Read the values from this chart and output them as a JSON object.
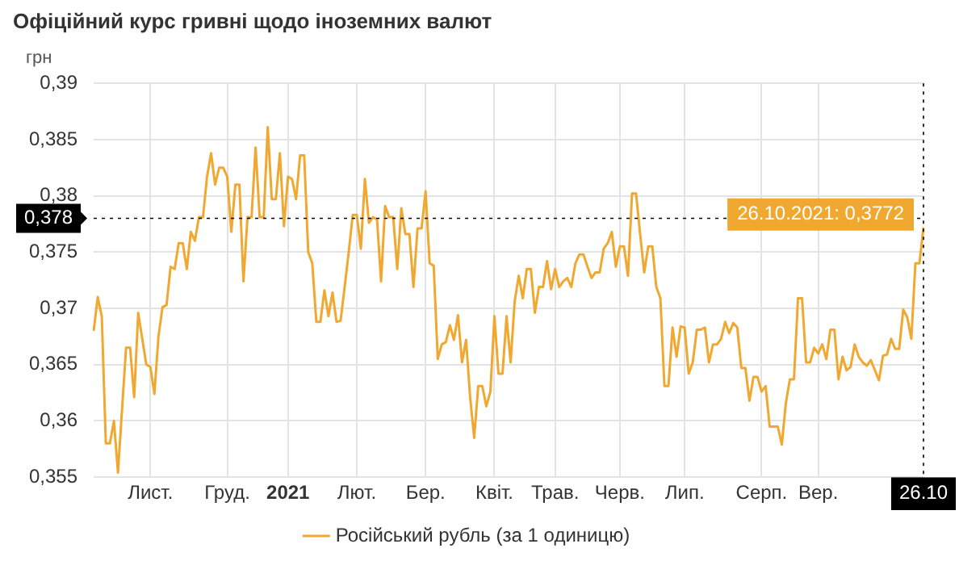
{
  "chart_data": {
    "type": "line",
    "title": "Офіційний курс гривні щодо іноземних валют",
    "ylabel": "грн",
    "categories": [
      null,
      null,
      null,
      null,
      null,
      null,
      null,
      null,
      null,
      null,
      null,
      null,
      null,
      null,
      "Лист.",
      null,
      null,
      null,
      null,
      null,
      null,
      null,
      null,
      null,
      null,
      null,
      null,
      null,
      null,
      null,
      null,
      null,
      null,
      "Груд.",
      null,
      null,
      null,
      null,
      null,
      null,
      null,
      null,
      null,
      null,
      null,
      null,
      null,
      null,
      "2021",
      null,
      null,
      null,
      null,
      null,
      null,
      null,
      null,
      null,
      null,
      null,
      null,
      null,
      null,
      null,
      null,
      "Лют.",
      null,
      null,
      null,
      null,
      null,
      null,
      null,
      null,
      null,
      null,
      null,
      null,
      null,
      null,
      null,
      null,
      "Бер.",
      null,
      null,
      null,
      null,
      null,
      null,
      null,
      null,
      null,
      null,
      null,
      null,
      null,
      null,
      null,
      null,
      "Квіт.",
      null,
      null,
      null,
      null,
      null,
      null,
      null,
      null,
      null,
      null,
      null,
      null,
      null,
      null,
      "Трав.",
      null,
      null,
      null,
      null,
      null,
      null,
      null,
      null,
      null,
      null,
      null,
      null,
      null,
      null,
      null,
      "Черв.",
      null,
      null,
      null,
      null,
      null,
      null,
      null,
      null,
      null,
      null,
      null,
      null,
      null,
      null,
      null,
      "Лип.",
      null,
      null,
      null,
      null,
      null,
      null,
      null,
      null,
      null,
      null,
      null,
      null,
      null,
      null,
      null,
      null,
      null,
      null,
      "Серп.",
      null,
      null,
      null,
      null,
      null,
      null,
      null,
      null,
      null,
      null,
      null,
      null,
      null,
      "Вер.",
      null,
      null,
      null,
      null,
      null,
      null,
      null,
      null,
      null,
      null,
      null,
      null,
      null,
      null,
      null,
      null,
      null,
      null,
      null,
      null,
      null,
      null,
      null,
      null,
      null,
      "26.10"
    ],
    "ylim": [
      0.355,
      0.39
    ],
    "yticks": [
      {
        "value": 0.355,
        "label": "0,355"
      },
      {
        "value": 0.36,
        "label": "0,36"
      },
      {
        "value": 0.365,
        "label": "0,365"
      },
      {
        "value": 0.37,
        "label": "0,37"
      },
      {
        "value": 0.375,
        "label": "0,375"
      },
      {
        "value": 0.38,
        "label": "0,38"
      },
      {
        "value": 0.385,
        "label": "0,385"
      },
      {
        "value": 0.39,
        "label": "0,39"
      }
    ],
    "grid": true,
    "legend": "bottom",
    "marker": "none",
    "line_style": "solid",
    "ref_lines": [
      {
        "axis": "y",
        "value": 0.378,
        "label": "0,378",
        "line_style": "dotted",
        "color": "#000000"
      },
      {
        "axis": "x",
        "value": "26.10",
        "line_style": "dotted",
        "color": "#000000"
      }
    ],
    "annotations": [
      {
        "text": "26.10.2021: 0,3772",
        "x": "26.10",
        "y": 0.3772
      }
    ],
    "series": [
      {
        "name": "Російський рубль (за 1 одиницю)",
        "color": "#f0a830",
        "values": [
          0.368,
          0.371,
          0.3693,
          0.358,
          0.358,
          0.36,
          0.3554,
          0.361,
          0.3665,
          0.3665,
          0.3621,
          0.3696,
          0.3673,
          0.365,
          0.3648,
          0.3624,
          0.3675,
          0.3701,
          0.3703,
          0.3737,
          0.3735,
          0.3758,
          0.3758,
          0.3735,
          0.3768,
          0.376,
          0.3781,
          0.3781,
          0.3817,
          0.3838,
          0.381,
          0.3825,
          0.3825,
          0.3817,
          0.3768,
          0.381,
          0.381,
          0.3724,
          0.3781,
          0.3781,
          0.3843,
          0.3781,
          0.3781,
          0.3861,
          0.3797,
          0.3797,
          0.3838,
          0.3773,
          0.3817,
          0.3815,
          0.3797,
          0.3836,
          0.3836,
          0.375,
          0.374,
          0.3688,
          0.3688,
          0.3716,
          0.3693,
          0.3714,
          0.3688,
          0.3689,
          0.3719,
          0.375,
          0.3783,
          0.3783,
          0.3753,
          0.3815,
          0.3776,
          0.3781,
          0.3779,
          0.3724,
          0.3791,
          0.3781,
          0.3781,
          0.3735,
          0.3789,
          0.3766,
          0.3766,
          0.3719,
          0.3771,
          0.3771,
          0.3804,
          0.374,
          0.3738,
          0.3655,
          0.3668,
          0.367,
          0.3685,
          0.3672,
          0.3694,
          0.3652,
          0.3672,
          0.3621,
          0.3585,
          0.3631,
          0.3631,
          0.3613,
          0.3626,
          0.3693,
          0.3642,
          0.3642,
          0.3693,
          0.3652,
          0.3706,
          0.3729,
          0.3709,
          0.3735,
          0.3735,
          0.3696,
          0.3719,
          0.3719,
          0.3742,
          0.3717,
          0.3735,
          0.3719,
          0.3724,
          0.3727,
          0.3719,
          0.374,
          0.3748,
          0.3748,
          0.3737,
          0.3727,
          0.3732,
          0.3732,
          0.3753,
          0.3758,
          0.3768,
          0.3737,
          0.3755,
          0.3755,
          0.3729,
          0.3802,
          0.3802,
          0.3766,
          0.3732,
          0.3755,
          0.3755,
          0.3719,
          0.3709,
          0.3631,
          0.3631,
          0.3683,
          0.3657,
          0.3684,
          0.3683,
          0.3642,
          0.3652,
          0.3681,
          0.3681,
          0.3683,
          0.3652,
          0.3668,
          0.3668,
          0.3673,
          0.3688,
          0.3678,
          0.3687,
          0.3683,
          0.3647,
          0.3647,
          0.3618,
          0.3639,
          0.3639,
          0.3626,
          0.3631,
          0.3595,
          0.3595,
          0.3595,
          0.3579,
          0.3616,
          0.3637,
          0.3637,
          0.3709,
          0.3709,
          0.3652,
          0.3652,
          0.3665,
          0.366,
          0.3668,
          0.3655,
          0.3681,
          0.3681,
          0.3637,
          0.3657,
          0.3645,
          0.3648,
          0.3668,
          0.3657,
          0.3652,
          0.3649,
          0.3654,
          0.3645,
          0.3636,
          0.3658,
          0.3659,
          0.3673,
          0.3664,
          0.3664,
          0.3699,
          0.3692,
          0.3673,
          0.374,
          0.374,
          0.3772
        ]
      }
    ]
  }
}
